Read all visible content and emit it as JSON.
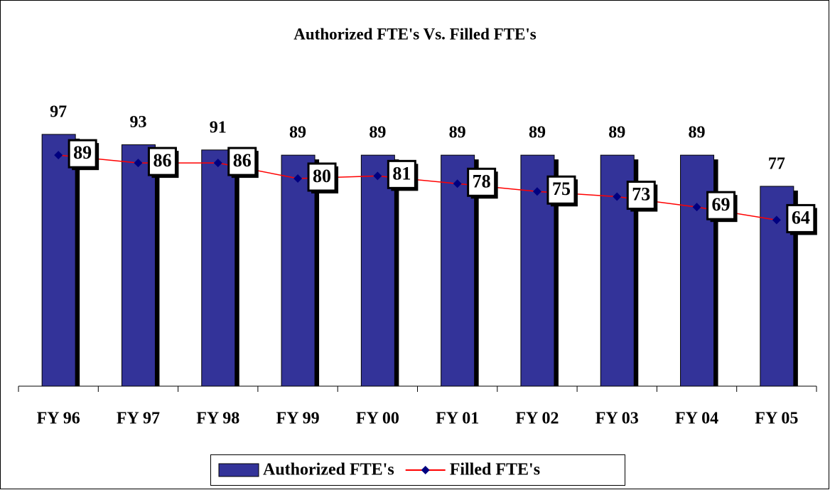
{
  "chart_data": {
    "type": "bar_line",
    "title": "Authorized FTE's Vs. Filled FTE's",
    "categories": [
      "FY 96",
      "FY 97",
      "FY 98",
      "FY 99",
      "FY 00",
      "FY 01",
      "FY 02",
      "FY 03",
      "FY 04",
      "FY 05"
    ],
    "series": [
      {
        "name": "Authorized FTE's",
        "type": "bar",
        "color": "#333399",
        "values": [
          97,
          93,
          91,
          89,
          89,
          89,
          89,
          89,
          89,
          77
        ]
      },
      {
        "name": "Filled FTE's",
        "type": "line",
        "color": "#ff0000",
        "marker_color": "#000080",
        "values": [
          89,
          86,
          86,
          80,
          81,
          78,
          75,
          73,
          69,
          64
        ]
      }
    ],
    "ylim": [
      0,
      100
    ],
    "legend": "bottom"
  }
}
